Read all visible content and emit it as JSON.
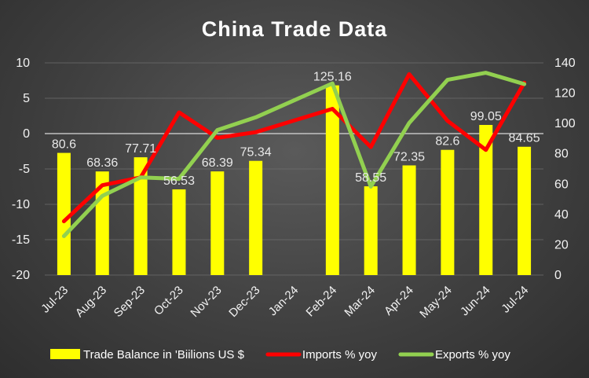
{
  "chart_data": {
    "type": "bar",
    "title": "China Trade Data",
    "categories": [
      "Jul-23",
      "Aug-23",
      "Sep-23",
      "Oct-23",
      "Nov-23",
      "Dec-23",
      "Jan-24",
      "Feb-24",
      "Mar-24",
      "Apr-24",
      "May-24",
      "Jun-24",
      "Jul-24"
    ],
    "y_left": {
      "min": -20,
      "max": 10,
      "step": 5,
      "ticks": [
        "10",
        "5",
        "0",
        "-5",
        "-10",
        "-15",
        "-20"
      ]
    },
    "y_right": {
      "min": 0,
      "max": 140,
      "step": 20,
      "ticks": [
        "140",
        "120",
        "100",
        "80",
        "60",
        "40",
        "20",
        "0"
      ]
    },
    "grid": true,
    "legend_position": "bottom",
    "series": [
      {
        "name": "Trade Balance in 'Biilions US $",
        "type": "bar",
        "axis": "right",
        "color": "#ffff00",
        "values": [
          80.6,
          68.36,
          77.71,
          56.53,
          68.39,
          75.34,
          null,
          125.16,
          58.55,
          72.35,
          82.6,
          99.05,
          84.65
        ],
        "labels": [
          "80.6",
          "68.36",
          "77.71",
          "56.53",
          "68.39",
          "75.34",
          "",
          "125.16",
          "58.55",
          "72.35",
          "82.6",
          "99.05",
          "84.65"
        ]
      },
      {
        "name": "Imports % yoy",
        "type": "line",
        "axis": "left",
        "color": "#ff0000",
        "values": [
          -12.4,
          -7.3,
          -6.2,
          3.0,
          -0.6,
          0.2,
          null,
          3.5,
          -1.9,
          8.4,
          1.8,
          -2.3,
          7.2
        ]
      },
      {
        "name": "Exports % yoy",
        "type": "line",
        "axis": "left",
        "color": "#92d050",
        "values": [
          -14.5,
          -8.8,
          -6.2,
          -6.4,
          0.5,
          2.3,
          null,
          7.1,
          -7.5,
          1.5,
          7.6,
          8.6,
          7.0
        ]
      }
    ]
  }
}
